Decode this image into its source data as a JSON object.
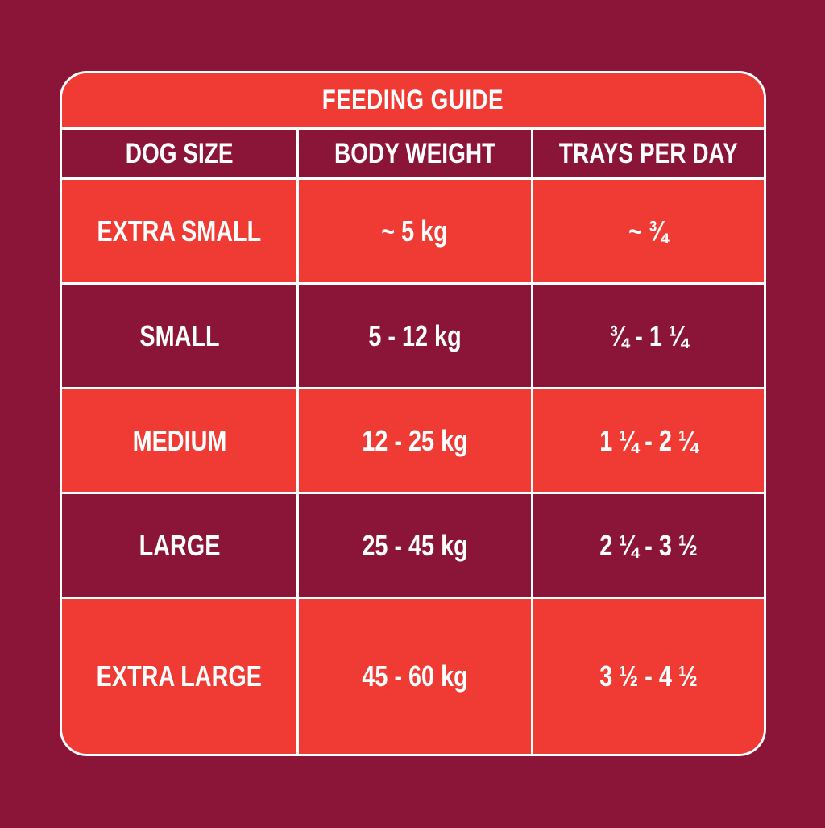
{
  "title": "FEEDING GUIDE",
  "headers": [
    "DOG SIZE",
    "BODY WEIGHT",
    "TRAYS PER DAY"
  ],
  "rows": [
    {
      "size": "EXTRA SMALL",
      "weight": "~ 5 kg",
      "trays": "~ ¾"
    },
    {
      "size": "SMALL",
      "weight": "5 - 12 kg",
      "trays": "¾ - 1 ¼"
    },
    {
      "size": "MEDIUM",
      "weight": "12 - 25 kg",
      "trays": "1 ¼ - 2 ¼"
    },
    {
      "size": "LARGE",
      "weight": "25 - 45 kg",
      "trays": "2 ¼ - 3 ½"
    },
    {
      "size": "EXTRA LARGE",
      "weight": "45 - 60 kg",
      "trays": "3 ½ - 4 ½"
    }
  ],
  "colors": {
    "background": "#8a1538",
    "accent_red": "#ef3b33",
    "text": "#ffffff"
  }
}
